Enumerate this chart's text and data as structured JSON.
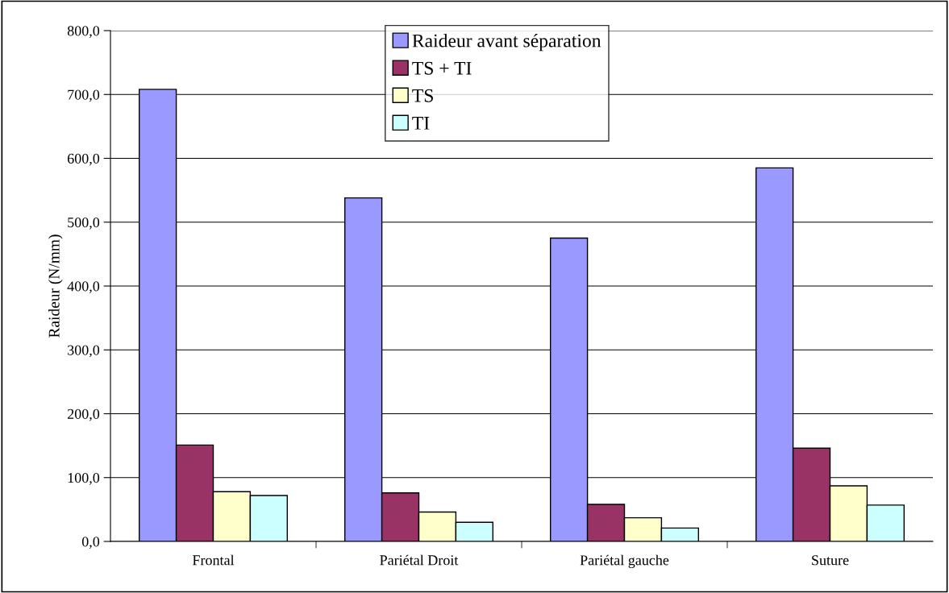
{
  "chart_data": {
    "type": "bar",
    "ylabel": "Raideur (N/mm)",
    "categories": [
      "Frontal",
      "Pariétal Droit",
      "Pariétal gauche",
      "Suture"
    ],
    "series": [
      {
        "name": "Raideur avant séparation",
        "color": "#9999ff",
        "values": [
          708,
          538,
          475,
          585
        ]
      },
      {
        "name": "TS + TI",
        "color": "#993366",
        "values": [
          151,
          76,
          58,
          146
        ]
      },
      {
        "name": "TS",
        "color": "#ffffcc",
        "values": [
          78,
          46,
          37,
          87
        ]
      },
      {
        "name": "TI",
        "color": "#ccffff",
        "values": [
          72,
          30,
          21,
          57
        ]
      }
    ],
    "ylim": [
      0,
      800
    ],
    "yticks": [
      {
        "value": 0,
        "label": "0,0"
      },
      {
        "value": 100,
        "label": "100,0"
      },
      {
        "value": 200,
        "label": "200,0"
      },
      {
        "value": 300,
        "label": "300,0"
      },
      {
        "value": 400,
        "label": "400,0"
      },
      {
        "value": 500,
        "label": "500,0"
      },
      {
        "value": 600,
        "label": "600,0"
      },
      {
        "value": 700,
        "label": "700,0"
      },
      {
        "value": 800,
        "label": "800,0"
      }
    ],
    "grid": "y",
    "legend": "top"
  }
}
